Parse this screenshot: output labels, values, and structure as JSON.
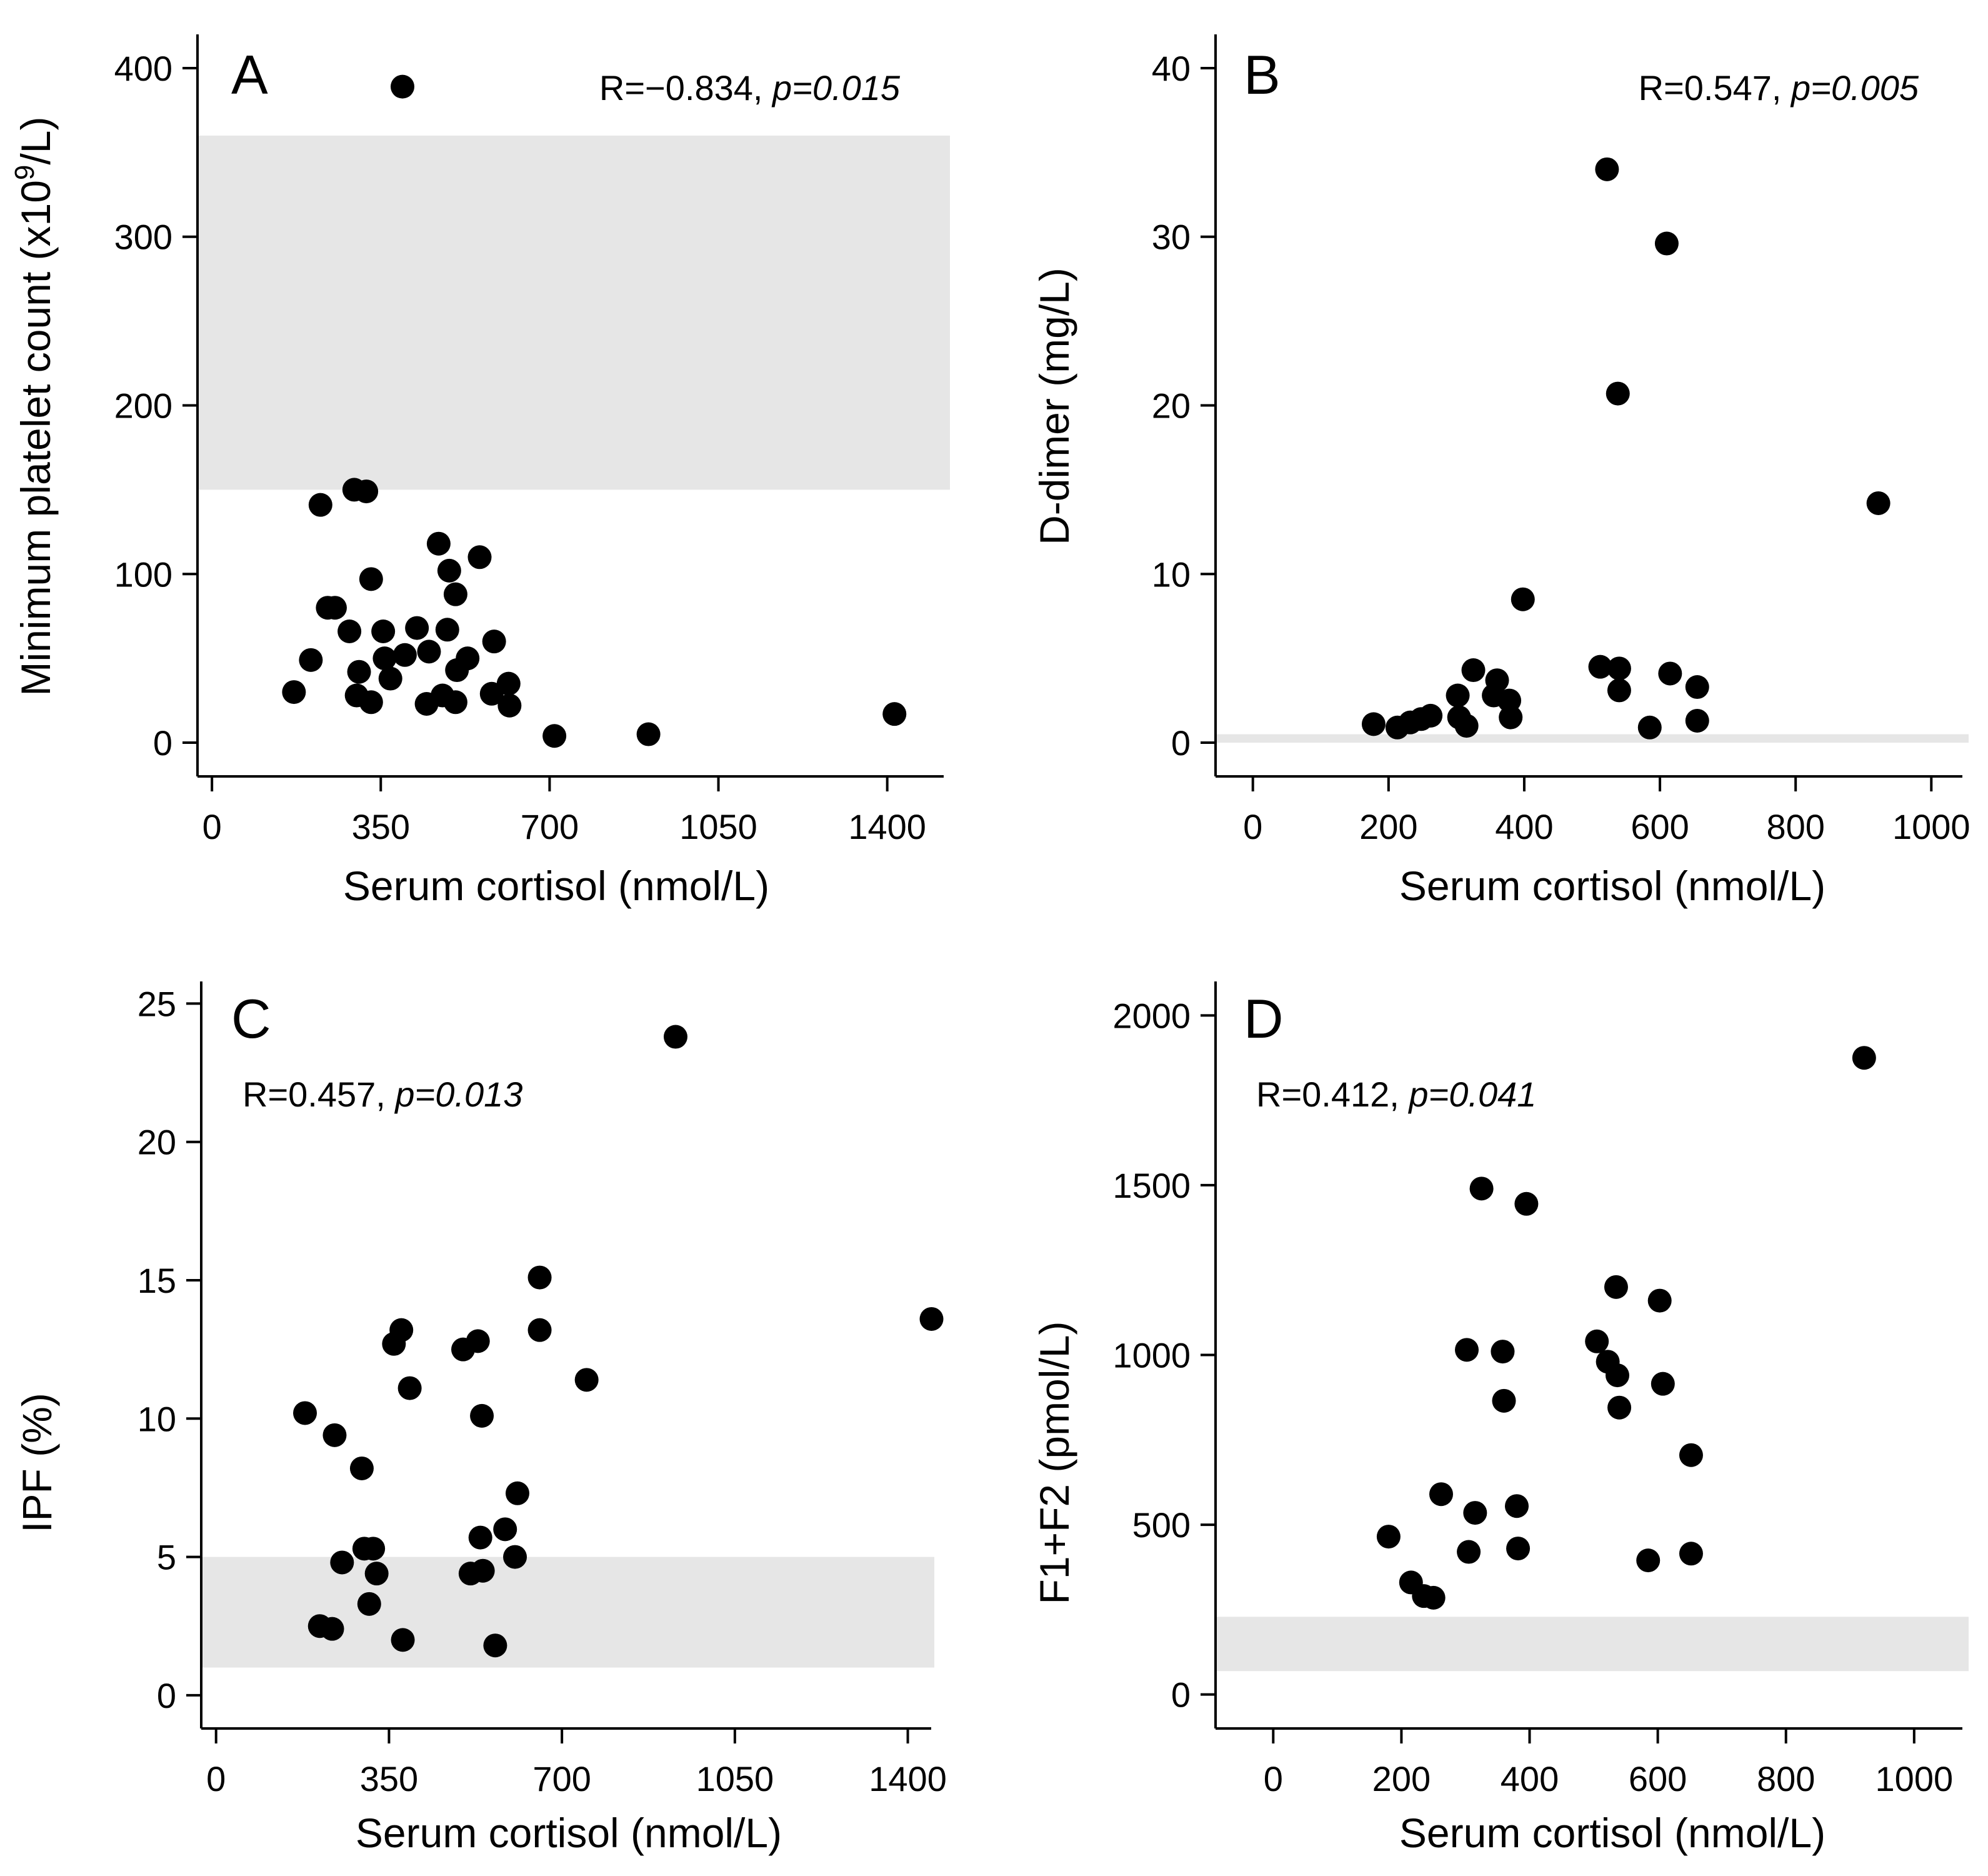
{
  "figure": {
    "reference_band_color": "#e6e6e6",
    "point_color": "#000000"
  },
  "chart_data": [
    {
      "type": "scatter",
      "panel_label": "A",
      "xlabel": "Serum cortisol (nmol/L)",
      "ylabel_parts": [
        "Minimum platelet count (x10",
        "9",
        "/L)"
      ],
      "annotation": {
        "r_text": "R=−0.834, ",
        "p_text": "p=0.015"
      },
      "xticks": [
        0,
        350,
        700,
        1050,
        1400
      ],
      "yticks": [
        0,
        100,
        200,
        300,
        400
      ],
      "xlim": [
        -30,
        1530
      ],
      "ylim": [
        -20,
        420
      ],
      "reference_range": [
        150,
        360
      ],
      "points": [
        [
          170,
          30
        ],
        [
          205,
          49
        ],
        [
          225,
          141
        ],
        [
          240,
          80
        ],
        [
          255,
          80
        ],
        [
          285,
          66
        ],
        [
          295,
          150
        ],
        [
          300,
          28
        ],
        [
          305,
          42
        ],
        [
          320,
          149
        ],
        [
          330,
          97
        ],
        [
          330,
          24
        ],
        [
          355,
          66
        ],
        [
          358,
          50
        ],
        [
          370,
          38
        ],
        [
          395,
          389
        ],
        [
          400,
          52
        ],
        [
          425,
          68
        ],
        [
          450,
          54
        ],
        [
          445,
          23
        ],
        [
          470,
          118
        ],
        [
          478,
          28
        ],
        [
          488,
          67
        ],
        [
          492,
          102
        ],
        [
          505,
          88
        ],
        [
          508,
          43
        ],
        [
          505,
          24
        ],
        [
          530,
          50
        ],
        [
          555,
          110
        ],
        [
          580,
          29
        ],
        [
          585,
          60
        ],
        [
          615,
          35
        ],
        [
          617,
          22
        ],
        [
          710,
          4
        ],
        [
          905,
          5
        ],
        [
          1415,
          17
        ]
      ]
    },
    {
      "type": "scatter",
      "panel_label": "B",
      "xlabel": "Serum cortisol (nmol/L)",
      "ylabel_parts": [
        "D-dimer (mg/L)"
      ],
      "annotation": {
        "r_text": "R=0.547, ",
        "p_text": "p=0.005"
      },
      "xticks": [
        0,
        200,
        400,
        600,
        800,
        1000
      ],
      "yticks": [
        0,
        10,
        20,
        30,
        40
      ],
      "xlim": [
        -55,
        1055
      ],
      "ylim": [
        -2,
        42
      ],
      "reference_range": [
        0,
        0.5
      ],
      "points": [
        [
          178,
          1.1
        ],
        [
          213,
          0.9
        ],
        [
          232,
          1.2
        ],
        [
          248,
          1.4
        ],
        [
          262,
          1.6
        ],
        [
          302,
          2.8
        ],
        [
          304,
          1.5
        ],
        [
          315,
          1.0
        ],
        [
          325,
          4.3
        ],
        [
          355,
          2.8
        ],
        [
          360,
          3.7
        ],
        [
          378,
          2.5
        ],
        [
          380,
          1.5
        ],
        [
          398,
          8.5
        ],
        [
          512,
          4.5
        ],
        [
          522,
          34.0
        ],
        [
          538,
          20.7
        ],
        [
          540,
          4.4
        ],
        [
          540,
          3.1
        ],
        [
          585,
          0.9
        ],
        [
          610,
          29.6
        ],
        [
          615,
          4.1
        ],
        [
          655,
          3.3
        ],
        [
          655,
          1.3
        ],
        [
          922,
          14.2
        ]
      ]
    },
    {
      "type": "scatter",
      "panel_label": "C",
      "xlabel": "Serum cortisol (nmol/L)",
      "ylabel_parts": [
        "IPF (%)"
      ],
      "annotation": {
        "r_text": "R=0.457, ",
        "p_text": "p=0.013"
      },
      "xticks": [
        0,
        350,
        700,
        1050,
        1400
      ],
      "yticks": [
        0,
        5,
        10,
        15,
        20,
        25
      ],
      "xlim": [
        -30,
        1460
      ],
      "ylim": [
        -1.2,
        25.8
      ],
      "reference_range": [
        1,
        5
      ],
      "points": [
        [
          180,
          10.2
        ],
        [
          210,
          2.5
        ],
        [
          235,
          2.4
        ],
        [
          240,
          9.4
        ],
        [
          255,
          4.8
        ],
        [
          295,
          8.2
        ],
        [
          300,
          5.3
        ],
        [
          310,
          3.3
        ],
        [
          318,
          5.3
        ],
        [
          325,
          4.4
        ],
        [
          360,
          12.7
        ],
        [
          375,
          13.2
        ],
        [
          378,
          2.0
        ],
        [
          392,
          11.1
        ],
        [
          500,
          12.5
        ],
        [
          515,
          4.4
        ],
        [
          530,
          12.8
        ],
        [
          538,
          10.1
        ],
        [
          535,
          5.7
        ],
        [
          540,
          4.5
        ],
        [
          565,
          1.8
        ],
        [
          585,
          6.0
        ],
        [
          605,
          5.0
        ],
        [
          610,
          7.3
        ],
        [
          655,
          15.1
        ],
        [
          655,
          13.2
        ],
        [
          750,
          11.4
        ],
        [
          930,
          23.8
        ],
        [
          1448,
          13.6
        ]
      ]
    },
    {
      "type": "scatter",
      "panel_label": "D",
      "xlabel": "Serum cortisol (nmol/L)",
      "ylabel_parts": [
        "F1+F2 (pmol/L)"
      ],
      "annotation": {
        "r_text": "R=0.412, ",
        "p_text": "p=0.041"
      },
      "xticks": [
        0,
        200,
        400,
        600,
        800,
        1000
      ],
      "yticks": [
        0,
        500,
        1000,
        1500,
        2000
      ],
      "xlim": [
        -90,
        1085
      ],
      "ylim": [
        -100,
        2100
      ],
      "reference_range": [
        69,
        229
      ],
      "points": [
        [
          180,
          465
        ],
        [
          215,
          330
        ],
        [
          235,
          290
        ],
        [
          250,
          285
        ],
        [
          262,
          590
        ],
        [
          302,
          1015
        ],
        [
          305,
          420
        ],
        [
          315,
          535
        ],
        [
          325,
          1490
        ],
        [
          358,
          1010
        ],
        [
          360,
          865
        ],
        [
          380,
          555
        ],
        [
          382,
          430
        ],
        [
          395,
          1445
        ],
        [
          505,
          1040
        ],
        [
          522,
          980
        ],
        [
          535,
          1200
        ],
        [
          537,
          940
        ],
        [
          540,
          845
        ],
        [
          585,
          395
        ],
        [
          603,
          1160
        ],
        [
          608,
          915
        ],
        [
          652,
          705
        ],
        [
          652,
          415
        ],
        [
          922,
          1875
        ]
      ]
    }
  ]
}
